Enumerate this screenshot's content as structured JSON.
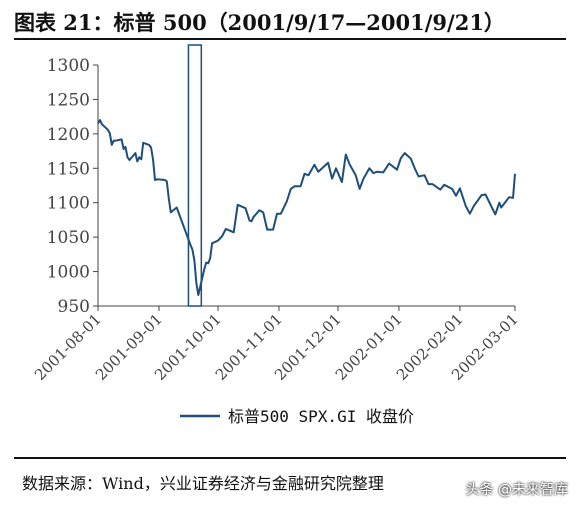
{
  "header": {
    "title": "图表 21：标普 500（2001/9/17—2001/9/21）"
  },
  "footer": {
    "source": "数据来源：Wind，兴业证券经济与金融研究院整理"
  },
  "watermark": {
    "text": "头条 @未来智库"
  },
  "chart_data": {
    "type": "line",
    "title": "",
    "xlabel": "",
    "ylabel": "",
    "x_ticks": [
      "2001-08-01",
      "2001-09-01",
      "2001-10-01",
      "2001-11-01",
      "2001-12-01",
      "2002-01-01",
      "2002-02-01",
      "2002-03-01"
    ],
    "y_ticks": [
      950,
      1000,
      1050,
      1100,
      1150,
      1200,
      1250,
      1300
    ],
    "xlim": [
      "2001-08-01",
      "2002-03-01"
    ],
    "ylim": [
      950,
      1300
    ],
    "grid": false,
    "legend": {
      "position": "bottom-center"
    },
    "highlight": {
      "x_start": "2001-09-17",
      "x_end": "2001-09-21",
      "color": "#1f4e79"
    },
    "series": [
      {
        "name": "标普500 SPX.GI 收盘价",
        "color": "#1f4e79",
        "x": [
          "2001-08-01",
          "2001-08-02",
          "2001-08-03",
          "2001-08-06",
          "2001-08-07",
          "2001-08-08",
          "2001-08-09",
          "2001-08-10",
          "2001-08-13",
          "2001-08-14",
          "2001-08-15",
          "2001-08-16",
          "2001-08-17",
          "2001-08-20",
          "2001-08-21",
          "2001-08-22",
          "2001-08-23",
          "2001-08-24",
          "2001-08-27",
          "2001-08-28",
          "2001-08-29",
          "2001-08-30",
          "2001-08-31",
          "2001-09-04",
          "2001-09-05",
          "2001-09-06",
          "2001-09-07",
          "2001-09-10",
          "2001-09-17",
          "2001-09-18",
          "2001-09-19",
          "2001-09-20",
          "2001-09-21",
          "2001-09-24",
          "2001-09-25",
          "2001-09-26",
          "2001-09-27",
          "2001-09-28",
          "2001-10-01",
          "2001-10-03",
          "2001-10-05",
          "2001-10-09",
          "2001-10-11",
          "2001-10-15",
          "2001-10-17",
          "2001-10-18",
          "2001-10-19",
          "2001-10-22",
          "2001-10-24",
          "2001-10-26",
          "2001-10-29",
          "2001-10-31",
          "2001-11-02",
          "2001-11-05",
          "2001-11-07",
          "2001-11-09",
          "2001-11-12",
          "2001-11-14",
          "2001-11-16",
          "2001-11-19",
          "2001-11-21",
          "2001-11-26",
          "2001-11-28",
          "2001-11-30",
          "2001-12-03",
          "2001-12-05",
          "2001-12-07",
          "2001-12-10",
          "2001-12-12",
          "2001-12-14",
          "2001-12-17",
          "2001-12-19",
          "2001-12-21",
          "2001-12-24",
          "2001-12-27",
          "2001-12-31",
          "2002-01-02",
          "2002-01-04",
          "2002-01-07",
          "2002-01-09",
          "2002-01-11",
          "2002-01-14",
          "2002-01-16",
          "2002-01-18",
          "2002-01-22",
          "2002-01-24",
          "2002-01-28",
          "2002-01-30",
          "2002-02-01",
          "2002-02-04",
          "2002-02-06",
          "2002-02-08",
          "2002-02-12",
          "2002-02-14",
          "2002-02-19",
          "2002-02-21",
          "2002-02-22",
          "2002-02-26",
          "2002-02-28",
          "2002-03-01"
        ],
        "values": [
          1215,
          1220,
          1214,
          1206,
          1201,
          1184,
          1190,
          1190,
          1192,
          1178,
          1181,
          1166,
          1162,
          1172,
          1160,
          1166,
          1163,
          1187,
          1184,
          1180,
          1162,
          1133,
          1134,
          1133,
          1131,
          1106,
          1086,
          1093,
          1039,
          1032,
          1016,
          984,
          966,
          1003,
          1013,
          1012,
          1019,
          1041,
          1045,
          1051,
          1062,
          1057,
          1097,
          1092,
          1074,
          1073,
          1079,
          1089,
          1086,
          1061,
          1061,
          1084,
          1084,
          1102,
          1120,
          1124,
          1124,
          1142,
          1140,
          1155,
          1145,
          1158,
          1135,
          1150,
          1130,
          1170,
          1155,
          1140,
          1120,
          1135,
          1150,
          1143,
          1145,
          1144,
          1157,
          1148,
          1165,
          1172,
          1164,
          1150,
          1138,
          1140,
          1127,
          1127,
          1119,
          1126,
          1120,
          1110,
          1121,
          1095,
          1084,
          1095,
          1111,
          1112,
          1083,
          1100,
          1093,
          1108,
          1107,
          1142
        ]
      }
    ]
  }
}
